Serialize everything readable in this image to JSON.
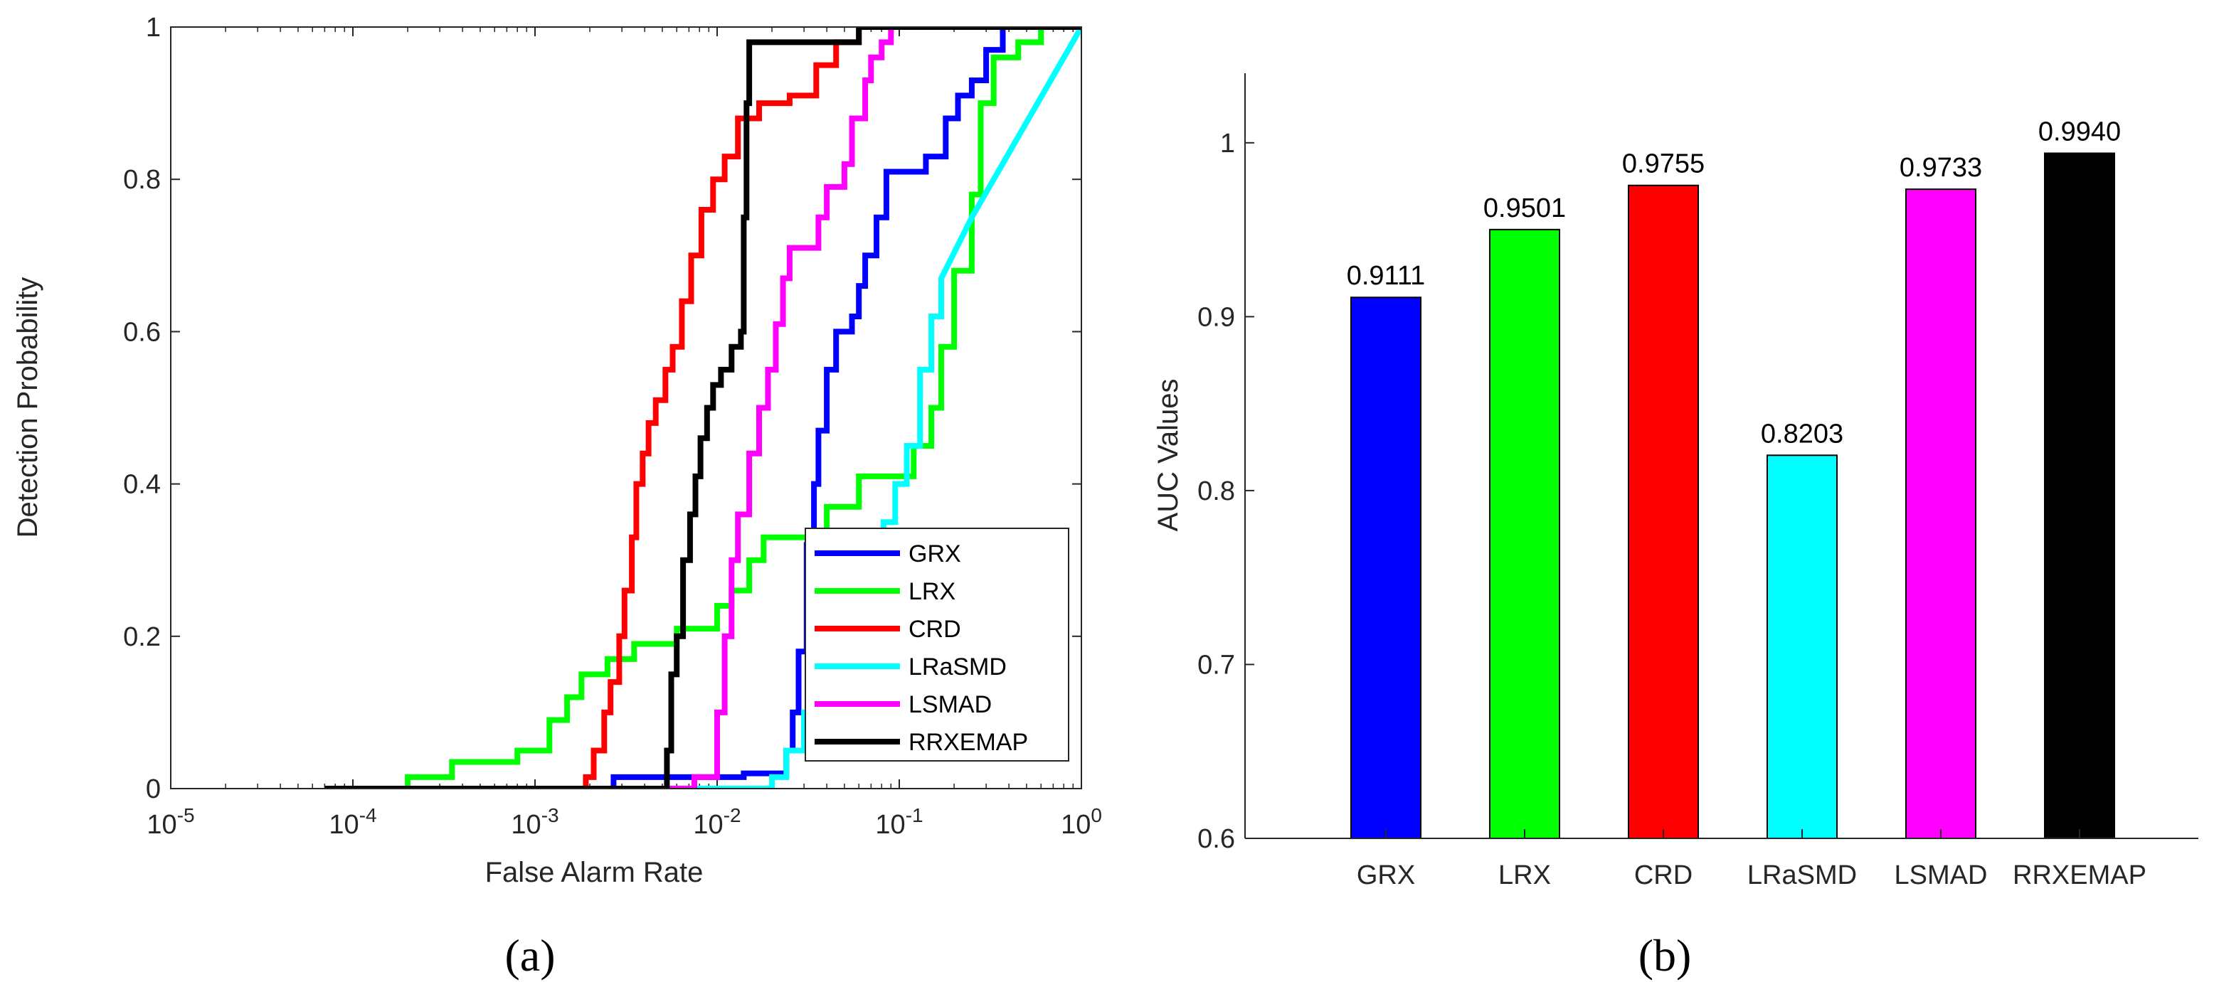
{
  "chart_data": [
    {
      "type": "line",
      "panel": "(a)",
      "xlabel": "False Alarm Rate",
      "ylabel": "Detection Probability",
      "xscale": "log",
      "xlim": [
        1e-05,
        1
      ],
      "ylim": [
        0,
        1
      ],
      "xtick_labels": [
        {
          "base": "10",
          "exp": "-5"
        },
        {
          "base": "10",
          "exp": "-4"
        },
        {
          "base": "10",
          "exp": "-3"
        },
        {
          "base": "10",
          "exp": "-2"
        },
        {
          "base": "10",
          "exp": "-1"
        },
        {
          "base": "10",
          "exp": "0"
        }
      ],
      "yticks": [
        "0",
        "0.2",
        "0.4",
        "0.6",
        "0.8",
        "1"
      ],
      "legend_position": "bottom-right",
      "series": [
        {
          "name": "GRX",
          "color": "#0000ff",
          "points": [
            [
              7e-05,
              0
            ],
            [
              0.0027,
              0
            ],
            [
              0.0027,
              0.015
            ],
            [
              0.014,
              0.015
            ],
            [
              0.014,
              0.02
            ],
            [
              0.024,
              0.02
            ],
            [
              0.024,
              0.05
            ],
            [
              0.026,
              0.05
            ],
            [
              0.026,
              0.1
            ],
            [
              0.028,
              0.1
            ],
            [
              0.028,
              0.18
            ],
            [
              0.031,
              0.18
            ],
            [
              0.031,
              0.32
            ],
            [
              0.034,
              0.32
            ],
            [
              0.034,
              0.4
            ],
            [
              0.036,
              0.4
            ],
            [
              0.036,
              0.47
            ],
            [
              0.04,
              0.47
            ],
            [
              0.04,
              0.55
            ],
            [
              0.045,
              0.55
            ],
            [
              0.045,
              0.6
            ],
            [
              0.055,
              0.6
            ],
            [
              0.055,
              0.62
            ],
            [
              0.06,
              0.62
            ],
            [
              0.06,
              0.66
            ],
            [
              0.065,
              0.66
            ],
            [
              0.065,
              0.7
            ],
            [
              0.075,
              0.7
            ],
            [
              0.075,
              0.75
            ],
            [
              0.085,
              0.75
            ],
            [
              0.085,
              0.81
            ],
            [
              0.14,
              0.81
            ],
            [
              0.14,
              0.83
            ],
            [
              0.18,
              0.83
            ],
            [
              0.18,
              0.88
            ],
            [
              0.21,
              0.88
            ],
            [
              0.21,
              0.91
            ],
            [
              0.25,
              0.91
            ],
            [
              0.25,
              0.93
            ],
            [
              0.3,
              0.93
            ],
            [
              0.3,
              0.97
            ],
            [
              0.37,
              0.97
            ],
            [
              0.37,
              1
            ],
            [
              1,
              1
            ]
          ]
        },
        {
          "name": "LRX",
          "color": "#00ff00",
          "points": [
            [
              7e-05,
              0
            ],
            [
              0.0002,
              0
            ],
            [
              0.0002,
              0.015
            ],
            [
              0.00035,
              0.015
            ],
            [
              0.00035,
              0.035
            ],
            [
              0.0008,
              0.035
            ],
            [
              0.0008,
              0.05
            ],
            [
              0.0012,
              0.05
            ],
            [
              0.0012,
              0.09
            ],
            [
              0.0015,
              0.09
            ],
            [
              0.0015,
              0.12
            ],
            [
              0.0018,
              0.12
            ],
            [
              0.0018,
              0.15
            ],
            [
              0.0025,
              0.15
            ],
            [
              0.0025,
              0.17
            ],
            [
              0.0035,
              0.17
            ],
            [
              0.0035,
              0.19
            ],
            [
              0.006,
              0.19
            ],
            [
              0.006,
              0.21
            ],
            [
              0.01,
              0.21
            ],
            [
              0.01,
              0.24
            ],
            [
              0.012,
              0.24
            ],
            [
              0.012,
              0.26
            ],
            [
              0.015,
              0.26
            ],
            [
              0.015,
              0.3
            ],
            [
              0.018,
              0.3
            ],
            [
              0.018,
              0.33
            ],
            [
              0.04,
              0.33
            ],
            [
              0.04,
              0.37
            ],
            [
              0.06,
              0.37
            ],
            [
              0.06,
              0.41
            ],
            [
              0.12,
              0.41
            ],
            [
              0.12,
              0.45
            ],
            [
              0.15,
              0.45
            ],
            [
              0.15,
              0.5
            ],
            [
              0.17,
              0.5
            ],
            [
              0.17,
              0.58
            ],
            [
              0.2,
              0.58
            ],
            [
              0.2,
              0.68
            ],
            [
              0.25,
              0.68
            ],
            [
              0.25,
              0.78
            ],
            [
              0.28,
              0.78
            ],
            [
              0.28,
              0.9
            ],
            [
              0.33,
              0.9
            ],
            [
              0.33,
              0.96
            ],
            [
              0.45,
              0.96
            ],
            [
              0.45,
              0.98
            ],
            [
              0.6,
              0.98
            ],
            [
              0.6,
              1
            ],
            [
              1,
              1
            ]
          ]
        },
        {
          "name": "CRD",
          "color": "#ff0000",
          "points": [
            [
              7e-05,
              0
            ],
            [
              0.0019,
              0
            ],
            [
              0.0019,
              0.015
            ],
            [
              0.0021,
              0.015
            ],
            [
              0.0021,
              0.05
            ],
            [
              0.0024,
              0.05
            ],
            [
              0.0024,
              0.1
            ],
            [
              0.0026,
              0.1
            ],
            [
              0.0026,
              0.14
            ],
            [
              0.0029,
              0.14
            ],
            [
              0.0029,
              0.2
            ],
            [
              0.0031,
              0.2
            ],
            [
              0.0031,
              0.26
            ],
            [
              0.0034,
              0.26
            ],
            [
              0.0034,
              0.33
            ],
            [
              0.0036,
              0.33
            ],
            [
              0.0036,
              0.4
            ],
            [
              0.0039,
              0.4
            ],
            [
              0.0039,
              0.44
            ],
            [
              0.0042,
              0.44
            ],
            [
              0.0042,
              0.48
            ],
            [
              0.0046,
              0.48
            ],
            [
              0.0046,
              0.51
            ],
            [
              0.0052,
              0.51
            ],
            [
              0.0052,
              0.55
            ],
            [
              0.0057,
              0.55
            ],
            [
              0.0057,
              0.58
            ],
            [
              0.0064,
              0.58
            ],
            [
              0.0064,
              0.64
            ],
            [
              0.0072,
              0.64
            ],
            [
              0.0072,
              0.7
            ],
            [
              0.0082,
              0.7
            ],
            [
              0.0082,
              0.76
            ],
            [
              0.0095,
              0.76
            ],
            [
              0.0095,
              0.8
            ],
            [
              0.011,
              0.8
            ],
            [
              0.011,
              0.83
            ],
            [
              0.013,
              0.83
            ],
            [
              0.013,
              0.88
            ],
            [
              0.017,
              0.88
            ],
            [
              0.017,
              0.9
            ],
            [
              0.025,
              0.9
            ],
            [
              0.025,
              0.91
            ],
            [
              0.035,
              0.91
            ],
            [
              0.035,
              0.95
            ],
            [
              0.045,
              0.95
            ],
            [
              0.045,
              0.98
            ],
            [
              0.06,
              0.98
            ],
            [
              0.06,
              1
            ],
            [
              1,
              1
            ]
          ]
        },
        {
          "name": "LRaSMD",
          "color": "#00ffff",
          "points": [
            [
              7e-05,
              0
            ],
            [
              0.02,
              0
            ],
            [
              0.02,
              0.015
            ],
            [
              0.024,
              0.015
            ],
            [
              0.024,
              0.05
            ],
            [
              0.03,
              0.05
            ],
            [
              0.03,
              0.1
            ],
            [
              0.038,
              0.1
            ],
            [
              0.038,
              0.15
            ],
            [
              0.05,
              0.15
            ],
            [
              0.05,
              0.2
            ],
            [
              0.062,
              0.2
            ],
            [
              0.062,
              0.25
            ],
            [
              0.072,
              0.25
            ],
            [
              0.072,
              0.3
            ],
            [
              0.082,
              0.3
            ],
            [
              0.082,
              0.35
            ],
            [
              0.095,
              0.35
            ],
            [
              0.095,
              0.4
            ],
            [
              0.11,
              0.4
            ],
            [
              0.11,
              0.45
            ],
            [
              0.13,
              0.45
            ],
            [
              0.13,
              0.55
            ],
            [
              0.15,
              0.55
            ],
            [
              0.15,
              0.62
            ],
            [
              0.17,
              0.62
            ],
            [
              0.17,
              0.67
            ],
            [
              0.25,
              0.75
            ],
            [
              1,
              1
            ]
          ]
        },
        {
          "name": "LSMAD",
          "color": "#ff00ff",
          "points": [
            [
              7e-05,
              0
            ],
            [
              0.0075,
              0
            ],
            [
              0.0075,
              0.015
            ],
            [
              0.01,
              0.015
            ],
            [
              0.01,
              0.1
            ],
            [
              0.011,
              0.1
            ],
            [
              0.011,
              0.2
            ],
            [
              0.012,
              0.2
            ],
            [
              0.012,
              0.3
            ],
            [
              0.013,
              0.3
            ],
            [
              0.013,
              0.36
            ],
            [
              0.015,
              0.36
            ],
            [
              0.015,
              0.44
            ],
            [
              0.017,
              0.44
            ],
            [
              0.017,
              0.5
            ],
            [
              0.019,
              0.5
            ],
            [
              0.019,
              0.55
            ],
            [
              0.021,
              0.55
            ],
            [
              0.021,
              0.61
            ],
            [
              0.023,
              0.61
            ],
            [
              0.023,
              0.67
            ],
            [
              0.025,
              0.67
            ],
            [
              0.025,
              0.71
            ],
            [
              0.036,
              0.71
            ],
            [
              0.036,
              0.75
            ],
            [
              0.04,
              0.75
            ],
            [
              0.04,
              0.79
            ],
            [
              0.05,
              0.79
            ],
            [
              0.05,
              0.82
            ],
            [
              0.055,
              0.82
            ],
            [
              0.055,
              0.88
            ],
            [
              0.065,
              0.88
            ],
            [
              0.065,
              0.93
            ],
            [
              0.07,
              0.93
            ],
            [
              0.07,
              0.96
            ],
            [
              0.08,
              0.96
            ],
            [
              0.08,
              0.98
            ],
            [
              0.09,
              0.98
            ],
            [
              0.09,
              1
            ],
            [
              1,
              1
            ]
          ]
        },
        {
          "name": "RRXEMAP",
          "color": "#000000",
          "points": [
            [
              7e-05,
              0
            ],
            [
              0.0053,
              0
            ],
            [
              0.0053,
              0.05
            ],
            [
              0.0056,
              0.05
            ],
            [
              0.0056,
              0.15
            ],
            [
              0.006,
              0.15
            ],
            [
              0.006,
              0.2
            ],
            [
              0.0065,
              0.2
            ],
            [
              0.0065,
              0.3
            ],
            [
              0.0071,
              0.3
            ],
            [
              0.0071,
              0.36
            ],
            [
              0.0076,
              0.36
            ],
            [
              0.0076,
              0.41
            ],
            [
              0.0081,
              0.41
            ],
            [
              0.0081,
              0.46
            ],
            [
              0.0088,
              0.46
            ],
            [
              0.0088,
              0.5
            ],
            [
              0.0095,
              0.5
            ],
            [
              0.0095,
              0.53
            ],
            [
              0.0105,
              0.53
            ],
            [
              0.0105,
              0.55
            ],
            [
              0.012,
              0.55
            ],
            [
              0.012,
              0.58
            ],
            [
              0.0135,
              0.58
            ],
            [
              0.0135,
              0.6
            ],
            [
              0.014,
              0.6
            ],
            [
              0.014,
              0.75
            ],
            [
              0.0145,
              0.75
            ],
            [
              0.0145,
              0.9
            ],
            [
              0.015,
              0.9
            ],
            [
              0.015,
              0.98
            ],
            [
              0.06,
              0.98
            ],
            [
              0.06,
              1
            ],
            [
              1,
              1
            ]
          ]
        }
      ]
    },
    {
      "type": "bar",
      "panel": "(b)",
      "xlabel": "",
      "ylabel": "AUC Values",
      "ylim": [
        0.6,
        1.04
      ],
      "yticks": [
        "0.6",
        "0.7",
        "0.8",
        "0.9",
        "1"
      ],
      "categories": [
        "GRX",
        "LRX",
        "CRD",
        "LRaSMD",
        "LSMAD",
        "RRXEMAP"
      ],
      "values": [
        0.9111,
        0.9501,
        0.9755,
        0.8203,
        0.9733,
        0.994
      ],
      "value_labels": [
        "0.9111",
        "0.9501",
        "0.9755",
        "0.8203",
        "0.9733",
        "0.9940"
      ],
      "colors": [
        "#0000ff",
        "#00ff00",
        "#ff0000",
        "#00ffff",
        "#ff00ff",
        "#000000"
      ]
    }
  ]
}
